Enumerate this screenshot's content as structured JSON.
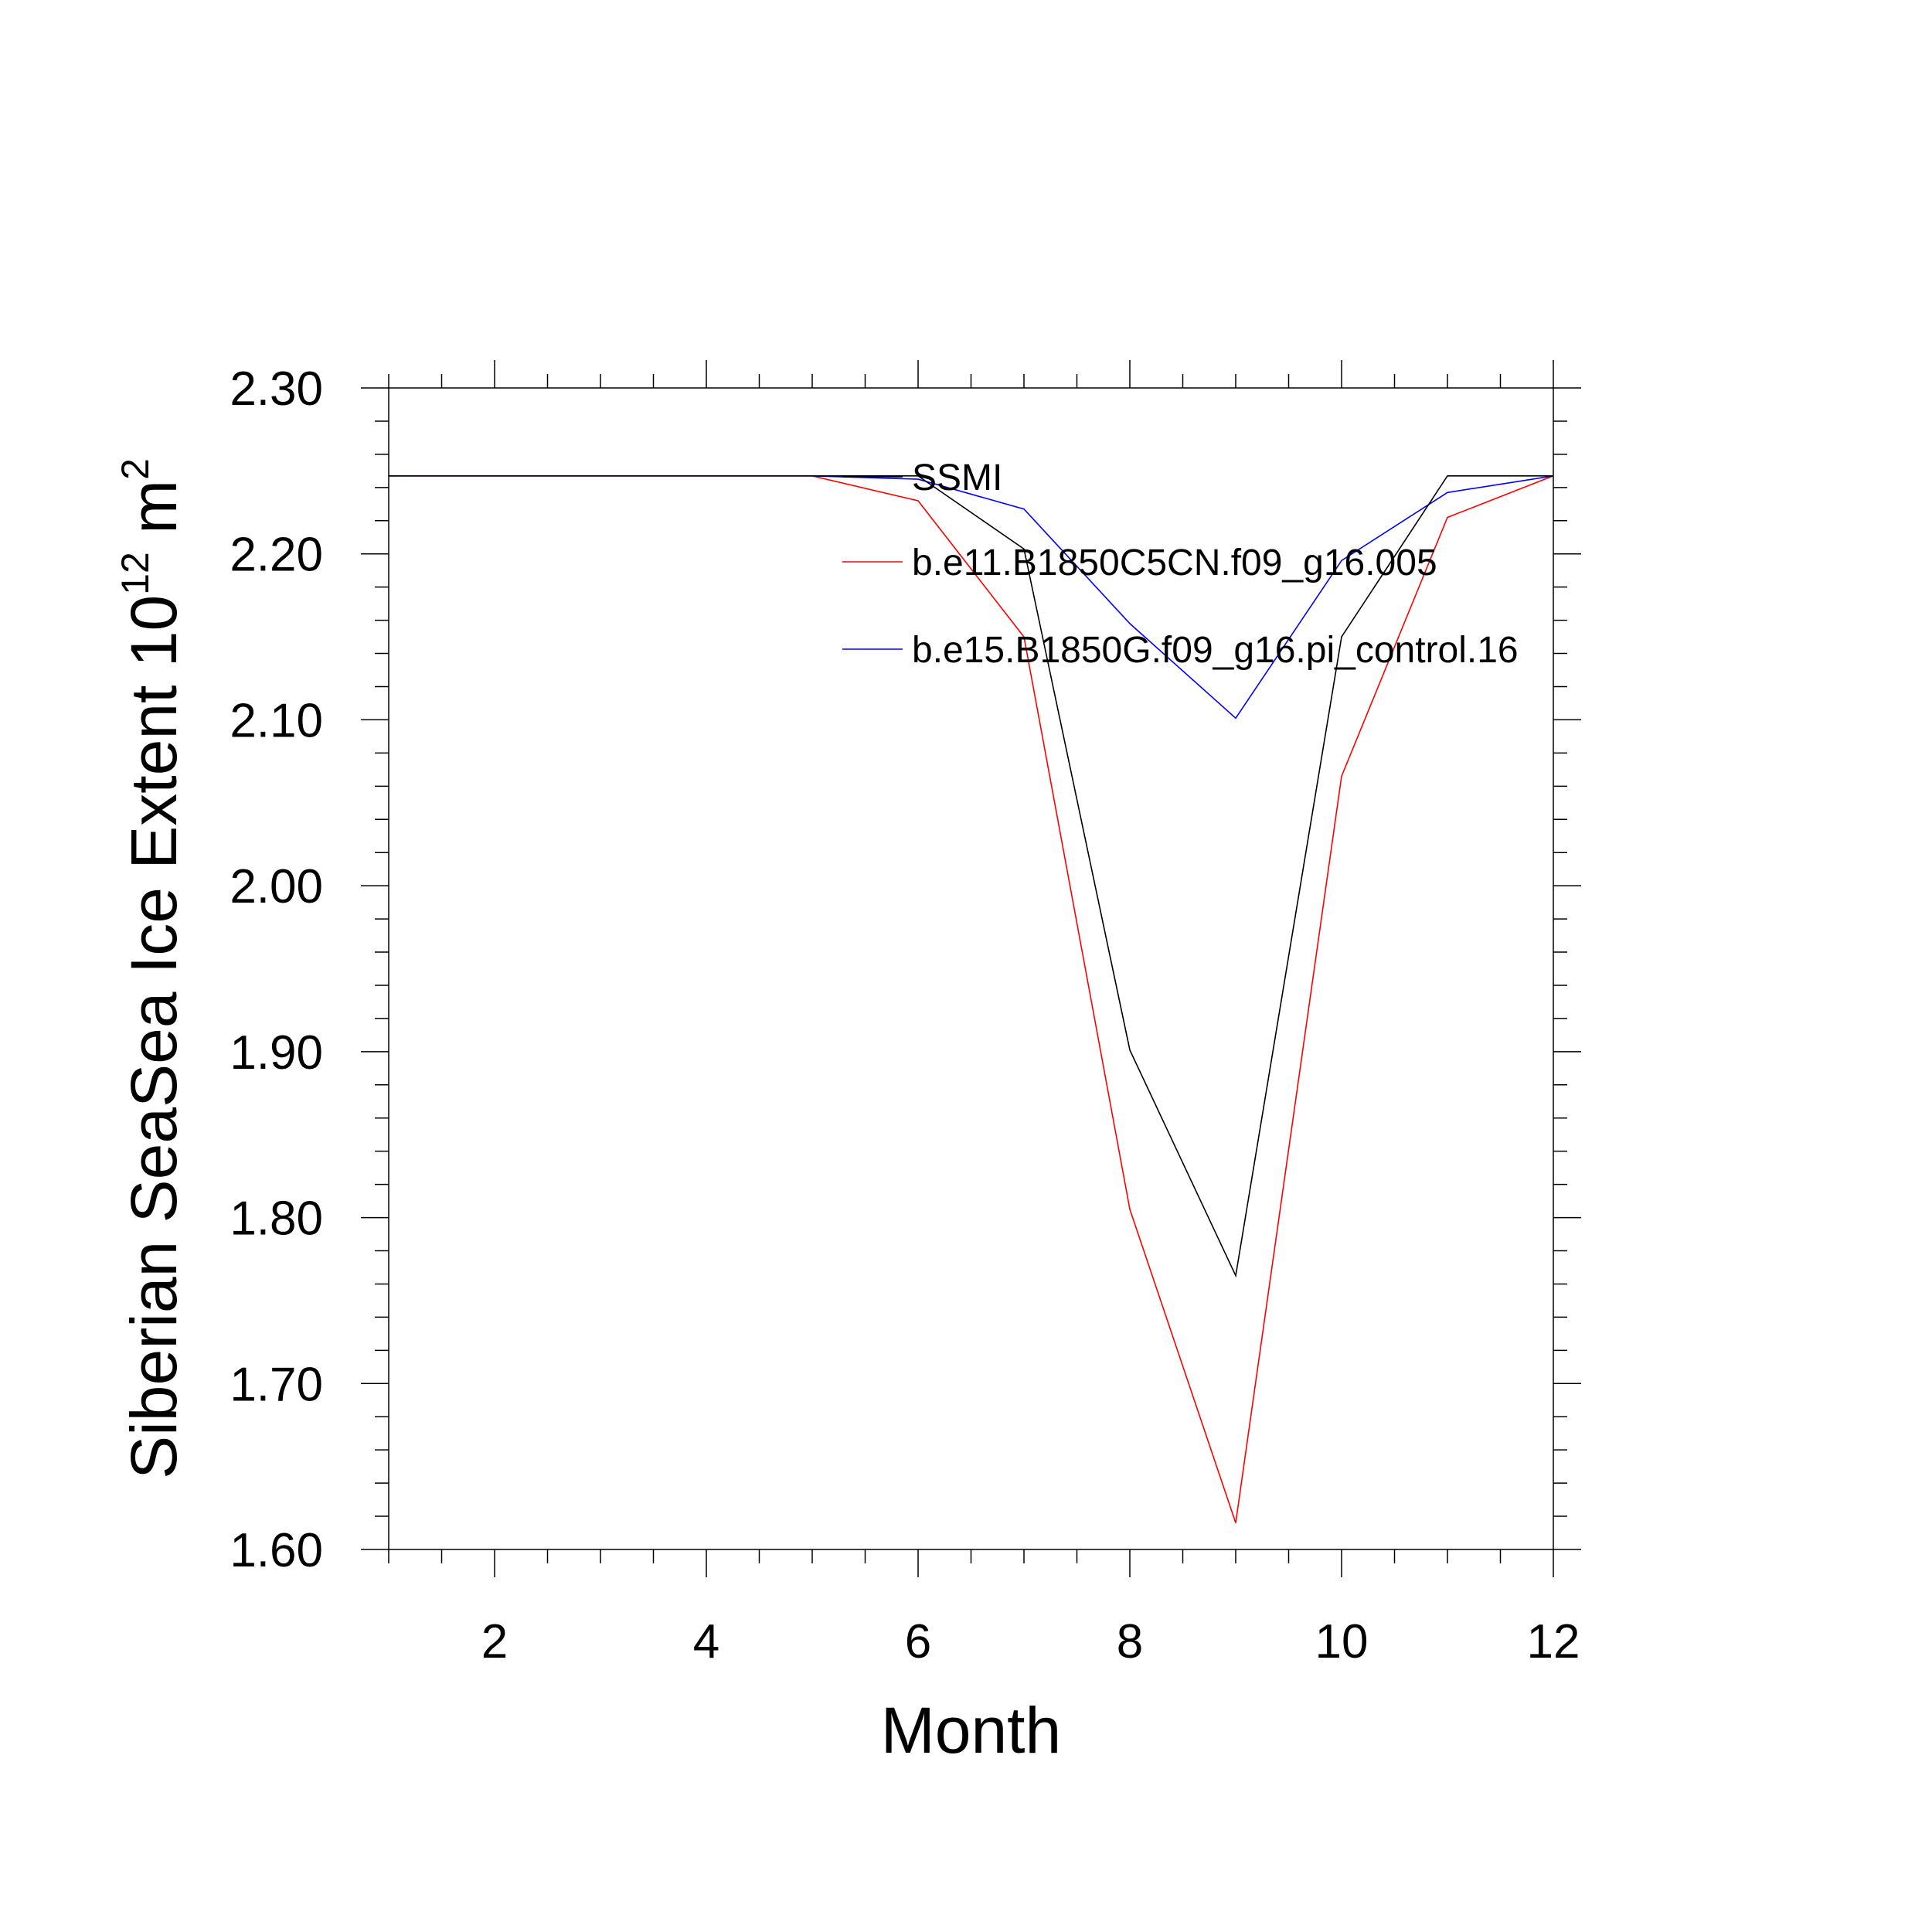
{
  "chart_data": {
    "type": "line",
    "xlabel": "Month",
    "ylabel": {
      "prefix": "Siberian SeaSea Ice Extent 10",
      "exp1": "12",
      "unit": " m",
      "exp2": "2"
    },
    "xlim": [
      1,
      12
    ],
    "ylim": [
      1.6,
      2.3
    ],
    "xticks": [
      2,
      4,
      6,
      8,
      10,
      12
    ],
    "yticks": [
      "1.60",
      "1.70",
      "1.80",
      "1.90",
      "2.00",
      "2.10",
      "2.20",
      "2.30"
    ],
    "legend_position": "top-right",
    "grid": false,
    "x": [
      1,
      2,
      3,
      4,
      5,
      6,
      7,
      8,
      9,
      10,
      11,
      12
    ],
    "series": [
      {
        "name": "SSMI",
        "color": "#000000",
        "values": [
          2.247,
          2.247,
          2.247,
          2.247,
          2.247,
          2.247,
          2.203,
          1.901,
          1.765,
          2.15,
          2.247,
          2.247
        ]
      },
      {
        "name": "b.e11.B1850C5CN.f09_g16.005",
        "color": "#ff0000",
        "values": [
          2.247,
          2.247,
          2.247,
          2.247,
          2.247,
          2.232,
          2.15,
          1.805,
          1.616,
          2.066,
          2.222,
          2.247
        ]
      },
      {
        "name": "b.e15.B1850G.f09_g16.pi_control.16",
        "color": "#0000ff",
        "values": [
          2.247,
          2.247,
          2.247,
          2.247,
          2.247,
          2.245,
          2.227,
          2.158,
          2.101,
          2.196,
          2.237,
          2.247
        ]
      }
    ]
  }
}
